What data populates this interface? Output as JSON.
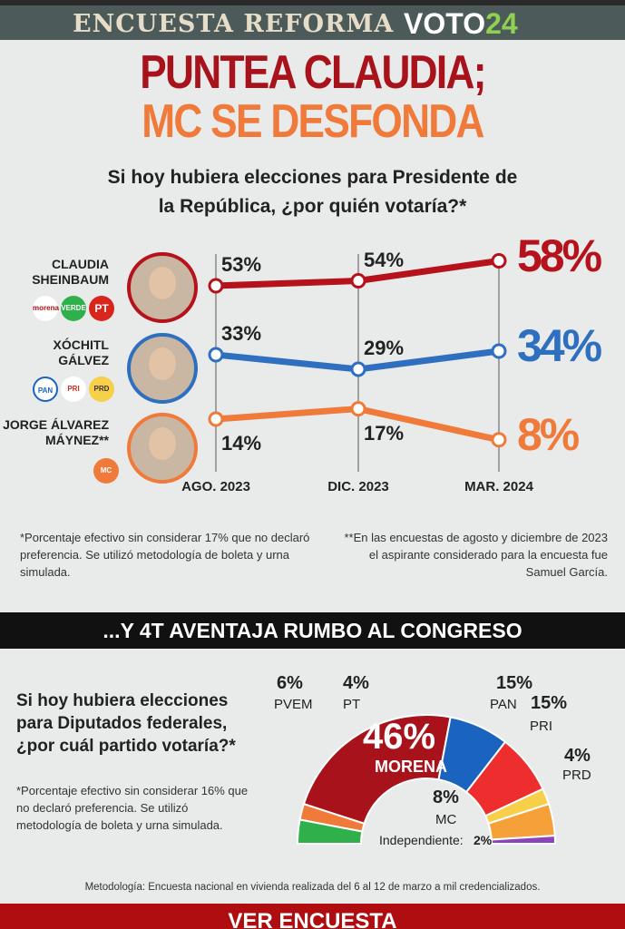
{
  "header": {
    "title": "ENCUESTA REFORMA",
    "logo_text": "VOTO",
    "logo_num": "24"
  },
  "headline": {
    "line1": "PUNTEA CLAUDIA;",
    "line2": "MC SE DESFONDA"
  },
  "question1": {
    "line1": "Si hoy hubiera elecciones para Presidente de",
    "line2": "la República, ¿por quién votaría?*"
  },
  "candidates": [
    {
      "name1": "CLAUDIA",
      "name2": "SHEINBAUM",
      "parties": [
        "morena",
        "VERDE",
        "PT"
      ],
      "color": "#b5121b"
    },
    {
      "name1": "XÓCHITL",
      "name2": "GÁLVEZ",
      "parties": [
        "PAN",
        "PRI",
        "PRD"
      ],
      "color": "#2f6fc0"
    },
    {
      "name1": "JORGE ÁLVAREZ",
      "name2": "MÁYNEZ**",
      "parties": [
        "MC"
      ],
      "color": "#f07a3a"
    }
  ],
  "chart_data": {
    "type": "line",
    "categories": [
      "AGO. 2023",
      "DIC. 2023",
      "MAR. 2024"
    ],
    "series": [
      {
        "name": "Claudia Sheinbaum",
        "values": [
          53,
          54,
          58
        ],
        "labels": [
          "53%",
          "54%",
          "58%"
        ]
      },
      {
        "name": "Xóchitl Gálvez",
        "values": [
          33,
          29,
          34
        ],
        "labels": [
          "33%",
          "29%",
          "34%"
        ]
      },
      {
        "name": "Jorge Álvarez Máynez",
        "values": [
          14,
          17,
          8
        ],
        "labels": [
          "14%",
          "17%",
          "8%"
        ]
      }
    ]
  },
  "notes": {
    "left": "*Porcentaje efectivo sin considerar 17% que no declaró preferencia. Se utilizó metodología de boleta y urna simulada.",
    "right": "**En las encuestas de agosto y diciembre de 2023 el aspirante considerado para la encuesta fue Samuel García."
  },
  "band": "...Y 4T AVENTAJA RUMBO AL CONGRESO",
  "question2": {
    "text": "Si hoy hubiera elecciones para Diputados federales, ¿por cuál partido votaría?*",
    "note": "*Porcentaje efectivo sin considerar 16% que no declaró preferencia. Se utilizó metodología de boleta y urna simulada."
  },
  "congress": {
    "type": "pie",
    "parties": [
      {
        "name": "PVEM",
        "value": 6,
        "label": "6%",
        "color": "#2fb04a"
      },
      {
        "name": "PT",
        "value": 4,
        "label": "4%",
        "color": "#f07a3a"
      },
      {
        "name": "MORENA",
        "value": 46,
        "label": "46%",
        "color": "#a8121a"
      },
      {
        "name": "PAN",
        "value": 15,
        "label": "15%",
        "color": "#1a64c0"
      },
      {
        "name": "PRI",
        "value": 15,
        "label": "15%",
        "color": "#ee2e2e"
      },
      {
        "name": "PRD",
        "value": 4,
        "label": "4%",
        "color": "#f7cf48"
      },
      {
        "name": "MC",
        "value": 8,
        "label": "8%",
        "color": "#f6a03a"
      },
      {
        "name": "Independiente:",
        "value": 2,
        "label": "2%",
        "color": "#8b45b8"
      }
    ]
  },
  "methodology": "Metodología: Encuesta nacional en vivienda realizada del 6 al 12 de marzo a mil credencializados.",
  "cta": "VER ENCUESTA"
}
